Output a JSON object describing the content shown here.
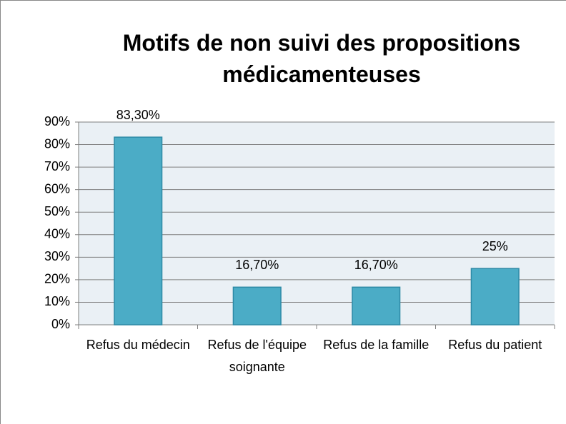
{
  "chart_data": {
    "type": "bar",
    "title": "Motifs de non suivi des propositions médicamenteuses",
    "categories": [
      "Refus du médecin",
      "Refus de l'équipe soignante",
      "Refus de la famille",
      "Refus du patient"
    ],
    "values": [
      83.3,
      16.7,
      16.7,
      25
    ],
    "value_labels": [
      "83,30%",
      "16,70%",
      "16,70%",
      "25%"
    ],
    "color": "#4bacc6",
    "ylim": [
      0,
      90
    ],
    "yticks": [
      {
        "value": 0,
        "label": "0%"
      },
      {
        "value": 10,
        "label": "10%"
      },
      {
        "value": 20,
        "label": "20%"
      },
      {
        "value": 30,
        "label": "30%"
      },
      {
        "value": 40,
        "label": "40%"
      },
      {
        "value": 50,
        "label": "50%"
      },
      {
        "value": 60,
        "label": "60%"
      },
      {
        "value": 70,
        "label": "70%"
      },
      {
        "value": 80,
        "label": "80%"
      },
      {
        "value": 90,
        "label": "90%"
      }
    ],
    "grid": true
  }
}
